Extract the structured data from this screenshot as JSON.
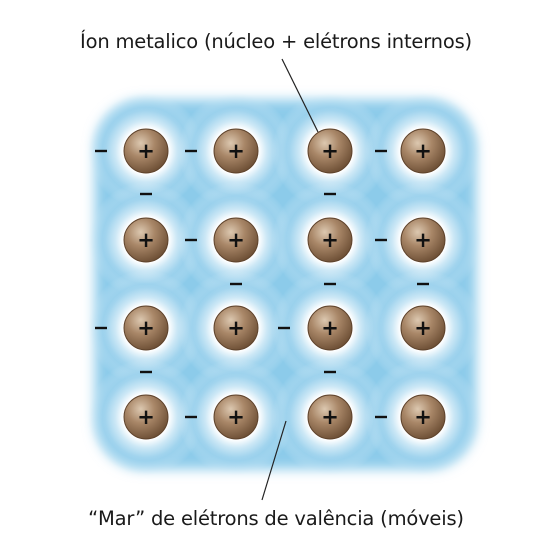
{
  "labels": {
    "ion_label": "Íon metalico (núcleo + elétrons internos)",
    "sea_label": "“Mar” de elétrons de valência (móveis)"
  },
  "symbols": {
    "cation": "+",
    "electron": "–"
  },
  "lattice": {
    "rows": 4,
    "columns": 4
  },
  "colors": {
    "electron_sea": "#8ccbea",
    "ion_fill": "#8b6b4f",
    "ion_highlight": "#d8c3aa",
    "text": "#1a1a1a"
  }
}
